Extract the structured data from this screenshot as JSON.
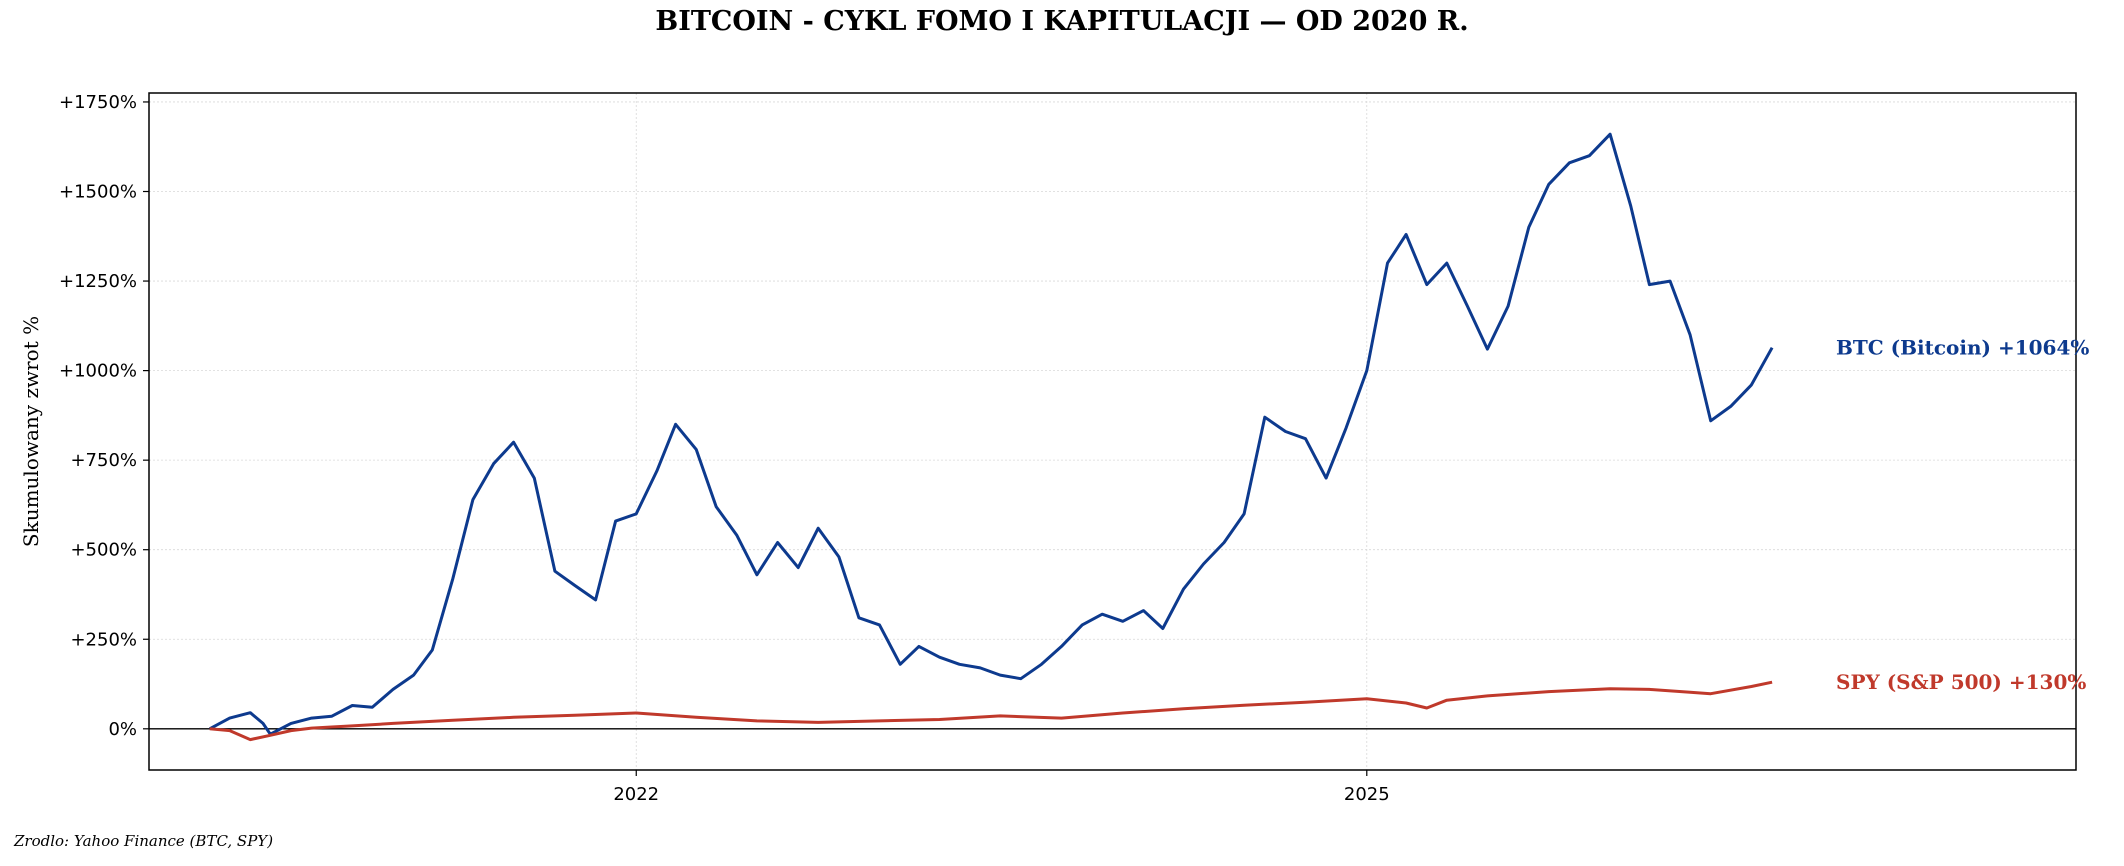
{
  "chart_data": {
    "type": "line",
    "title": "BITCOIN - CYKL FOMO I KAPITULACJI — OD 2020 R.",
    "ylabel": "Skumulowany zwrot %",
    "xlabel": "",
    "source": "Zrodlo: Yahoo Finance (BTC, SPY)",
    "ylim": [
      -115,
      1775
    ],
    "xlim": [
      "2020-01-01",
      "2027-12-01"
    ],
    "grid": true,
    "y_ticks": [
      0,
      250,
      500,
      750,
      1000,
      1250,
      1500,
      1750
    ],
    "y_tick_labels": [
      "0%",
      "+250%",
      "+500%",
      "+750%",
      "+1000%",
      "+1250%",
      "+1500%",
      "+1750%"
    ],
    "x_ticks": [
      "2022-01-01",
      "2025-01-01"
    ],
    "x_tick_labels": [
      "2022",
      "2025"
    ],
    "series": [
      {
        "name": "BTC (Bitcoin)",
        "end_label": "+1064%",
        "color": "#0d3a8e",
        "points": [
          [
            "2020-04-01",
            0
          ],
          [
            "2020-05-01",
            30
          ],
          [
            "2020-06-01",
            45
          ],
          [
            "2020-06-20",
            15
          ],
          [
            "2020-07-01",
            -15
          ],
          [
            "2020-08-01",
            15
          ],
          [
            "2020-09-01",
            30
          ],
          [
            "2020-10-01",
            35
          ],
          [
            "2020-11-01",
            65
          ],
          [
            "2020-12-01",
            60
          ],
          [
            "2021-01-01",
            110
          ],
          [
            "2021-02-01",
            150
          ],
          [
            "2021-03-01",
            220
          ],
          [
            "2021-04-01",
            420
          ],
          [
            "2021-05-01",
            640
          ],
          [
            "2021-06-01",
            740
          ],
          [
            "2021-07-01",
            800
          ],
          [
            "2021-08-01",
            700
          ],
          [
            "2021-09-01",
            440
          ],
          [
            "2021-10-01",
            400
          ],
          [
            "2021-11-01",
            360
          ],
          [
            "2021-12-01",
            580
          ],
          [
            "2022-01-01",
            600
          ],
          [
            "2022-02-01",
            720
          ],
          [
            "2022-03-01",
            850
          ],
          [
            "2022-04-01",
            780
          ],
          [
            "2022-05-01",
            620
          ],
          [
            "2022-06-01",
            540
          ],
          [
            "2022-07-01",
            430
          ],
          [
            "2022-08-01",
            520
          ],
          [
            "2022-09-01",
            450
          ],
          [
            "2022-10-01",
            560
          ],
          [
            "2022-11-01",
            480
          ],
          [
            "2022-12-01",
            310
          ],
          [
            "2023-01-01",
            290
          ],
          [
            "2023-02-01",
            180
          ],
          [
            "2023-03-01",
            230
          ],
          [
            "2023-04-01",
            200
          ],
          [
            "2023-05-01",
            180
          ],
          [
            "2023-06-01",
            170
          ],
          [
            "2023-07-01",
            150
          ],
          [
            "2023-08-01",
            140
          ],
          [
            "2023-09-01",
            180
          ],
          [
            "2023-10-01",
            230
          ],
          [
            "2023-11-01",
            290
          ],
          [
            "2023-12-01",
            320
          ],
          [
            "2024-01-01",
            300
          ],
          [
            "2024-02-01",
            330
          ],
          [
            "2024-03-01",
            280
          ],
          [
            "2024-04-01",
            390
          ],
          [
            "2024-05-01",
            460
          ],
          [
            "2024-06-01",
            520
          ],
          [
            "2024-07-01",
            600
          ],
          [
            "2024-08-01",
            870
          ],
          [
            "2024-09-01",
            830
          ],
          [
            "2024-10-01",
            810
          ],
          [
            "2024-11-01",
            700
          ],
          [
            "2024-12-01",
            840
          ],
          [
            "2025-01-01",
            1000
          ],
          [
            "2025-02-01",
            1300
          ],
          [
            "2025-03-01",
            1380
          ],
          [
            "2025-04-01",
            1240
          ],
          [
            "2025-05-01",
            1300
          ],
          [
            "2025-06-01",
            1180
          ],
          [
            "2025-07-01",
            1060
          ],
          [
            "2025-08-01",
            1180
          ],
          [
            "2025-09-01",
            1400
          ],
          [
            "2025-10-01",
            1520
          ],
          [
            "2025-11-01",
            1580
          ],
          [
            "2025-12-01",
            1600
          ],
          [
            "2026-01-01",
            1660
          ],
          [
            "2026-02-01",
            1460
          ],
          [
            "2026-03-01",
            1240
          ],
          [
            "2026-04-01",
            1250
          ],
          [
            "2026-05-01",
            1100
          ],
          [
            "2026-06-01",
            860
          ],
          [
            "2026-07-01",
            900
          ],
          [
            "2026-08-01",
            960
          ],
          [
            "2026-09-01",
            1064
          ]
        ]
      },
      {
        "name": "SPY (S&P 500)",
        "end_label": "+130%",
        "color": "#c0392b",
        "points": [
          [
            "2020-04-01",
            0
          ],
          [
            "2020-05-01",
            -5
          ],
          [
            "2020-06-01",
            -30
          ],
          [
            "2020-07-01",
            -18
          ],
          [
            "2020-08-01",
            -5
          ],
          [
            "2020-09-01",
            2
          ],
          [
            "2020-10-01",
            5
          ],
          [
            "2020-11-01",
            8
          ],
          [
            "2021-01-01",
            15
          ],
          [
            "2021-04-01",
            24
          ],
          [
            "2021-07-01",
            32
          ],
          [
            "2021-10-01",
            38
          ],
          [
            "2022-01-01",
            44
          ],
          [
            "2022-04-01",
            32
          ],
          [
            "2022-07-01",
            22
          ],
          [
            "2022-10-01",
            18
          ],
          [
            "2023-01-01",
            22
          ],
          [
            "2023-04-01",
            26
          ],
          [
            "2023-07-01",
            36
          ],
          [
            "2023-10-01",
            30
          ],
          [
            "2024-01-01",
            44
          ],
          [
            "2024-04-01",
            56
          ],
          [
            "2024-07-01",
            66
          ],
          [
            "2024-10-01",
            74
          ],
          [
            "2025-01-01",
            84
          ],
          [
            "2025-03-01",
            72
          ],
          [
            "2025-04-01",
            58
          ],
          [
            "2025-05-01",
            80
          ],
          [
            "2025-07-01",
            92
          ],
          [
            "2025-10-01",
            104
          ],
          [
            "2026-01-01",
            112
          ],
          [
            "2026-03-01",
            110
          ],
          [
            "2026-05-01",
            102
          ],
          [
            "2026-06-01",
            98
          ],
          [
            "2026-08-01",
            118
          ],
          [
            "2026-09-01",
            130
          ]
        ]
      }
    ]
  }
}
